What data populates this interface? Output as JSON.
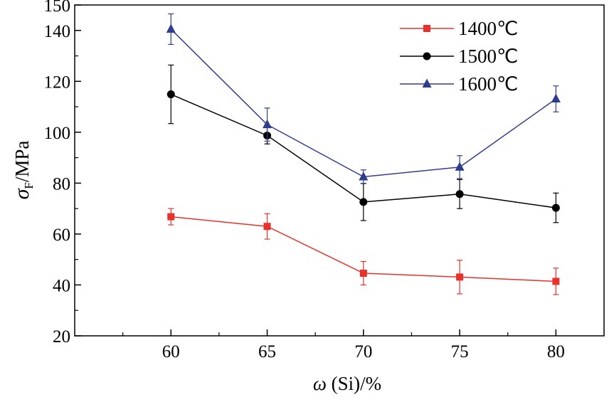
{
  "chart_data": {
    "type": "line",
    "title": "",
    "x": [
      60,
      65,
      70,
      75,
      80
    ],
    "xlim": [
      55,
      82.5
    ],
    "ylim": [
      20,
      150
    ],
    "xticks": [
      "60",
      "65",
      "70",
      "75",
      "80"
    ],
    "yticks": [
      "20",
      "40",
      "60",
      "80",
      "100",
      "120",
      "140",
      "150"
    ],
    "ylabel_symbol": "σ",
    "ylabel_subscript": "F",
    "ylabel_unit": "/MPa",
    "xlabel_symbol": "ω",
    "xlabel_rest": " (Si)/%",
    "grid": false,
    "legend_position": "top-right",
    "series": [
      {
        "name": "1400℃",
        "color": "#e8312a",
        "marker": "square",
        "values": [
          66.8,
          63.0,
          44.6,
          43.1,
          41.4
        ],
        "errors": [
          3.2,
          5.0,
          4.6,
          6.6,
          5.2
        ]
      },
      {
        "name": "1500℃",
        "color": "#000000",
        "marker": "circle",
        "values": [
          114.9,
          98.7,
          72.6,
          75.7,
          70.3
        ],
        "errors": [
          11.5,
          3.3,
          7.3,
          5.7,
          5.8
        ]
      },
      {
        "name": "1600℃",
        "color": "#2f3d8e",
        "marker": "triangle",
        "values": [
          140.5,
          103.0,
          82.5,
          86.3,
          113.1
        ],
        "errors": [
          6.0,
          6.5,
          2.7,
          4.5,
          5.1
        ]
      }
    ]
  }
}
